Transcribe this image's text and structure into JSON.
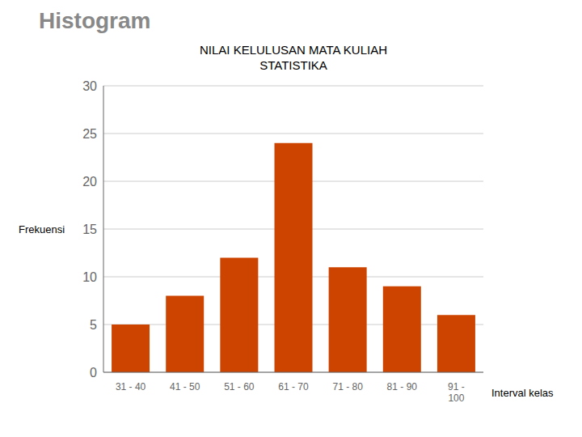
{
  "chart_data": {
    "type": "bar",
    "title": "NILAI KELULUSAN MATA KULIAH\nSTATISTIKA",
    "annotations": [
      "Histogram"
    ],
    "ylabel": "Frekuensi",
    "xlabel": "Interval kelas",
    "categories": [
      "31 - 40",
      "41 - 50",
      "51 - 60",
      "61 - 70",
      "71 - 80",
      "81 - 90",
      "91 -\n100"
    ],
    "values": [
      5,
      8,
      12,
      24,
      11,
      9,
      6
    ],
    "color": "#CC4400",
    "ylim": [
      0,
      30
    ],
    "yticks": [
      0,
      5,
      10,
      15,
      20,
      25,
      30
    ],
    "grid": true
  }
}
